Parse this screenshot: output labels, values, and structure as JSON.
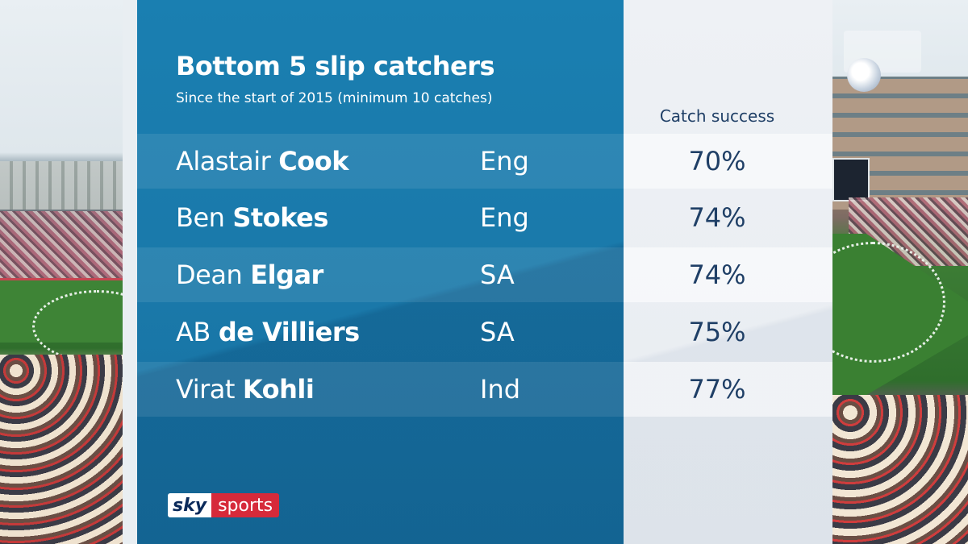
{
  "graphic": {
    "title": "Bottom 5 slip catchers",
    "subtitle": "Since the start of 2015 (minimum 10 catches)",
    "column_header": "Catch success",
    "rows": [
      {
        "first": "Alastair",
        "last": "Cook",
        "team": "Eng",
        "pct": "70%"
      },
      {
        "first": "Ben",
        "last": "Stokes",
        "team": "Eng",
        "pct": "74%"
      },
      {
        "first": "Dean",
        "last": "Elgar",
        "team": "SA",
        "pct": "74%"
      },
      {
        "first": "AB",
        "last": "de Villiers",
        "team": "SA",
        "pct": "75%"
      },
      {
        "first": "Virat",
        "last": "Kohli",
        "team": "Ind",
        "pct": "77%"
      }
    ]
  },
  "logo": {
    "sky": "sky",
    "sports": "sports"
  },
  "colors": {
    "panel_blue": "#1a7fb1",
    "panel_white": "#eef1f5",
    "value_text": "#1f3f66",
    "logo_red": "#d62a3a"
  }
}
